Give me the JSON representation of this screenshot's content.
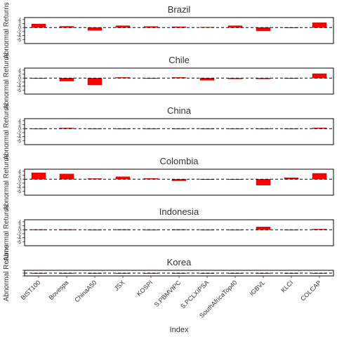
{
  "chart_data": {
    "type": "bar",
    "xlabel": "Index",
    "ylabel": "Abnormal Returns",
    "ylim": [
      -8,
      5
    ],
    "yticks": [
      -6,
      -4,
      -2,
      0,
      2,
      4
    ],
    "reference_line": {
      "y": 0,
      "style": "dashed"
    },
    "colors": {
      "bar": "#ff0000",
      "bar_outline": "#8b0000",
      "frame": "#000000",
      "reference_line": "#000000"
    },
    "categories": [
      "BIST100",
      "Bovespa",
      "ChinaA50",
      "JSX",
      "KOSPI",
      "S.PBMVIPC",
      "S.PCLXIPSA",
      "SouthAfricaTop40",
      "IGBVL",
      "KLCI",
      "COLCAP"
    ],
    "panels": [
      {
        "title": "Brazil",
        "values": [
          1.8,
          0.6,
          -1.4,
          0.9,
          0.5,
          0.4,
          0.2,
          0.9,
          -1.7,
          0,
          2.4
        ]
      },
      {
        "title": "Chile",
        "values": [
          0,
          -1.5,
          -3.4,
          0.3,
          -0.2,
          0.3,
          -1.1,
          -0.4,
          -0.4,
          0,
          2.2
        ]
      },
      {
        "title": "China",
        "values": [
          0,
          0.3,
          0,
          0,
          0,
          0,
          0,
          0,
          0,
          0,
          0.4
        ]
      },
      {
        "title": "Colombia",
        "values": [
          3.2,
          2.6,
          0.3,
          1.2,
          0.4,
          -0.8,
          0,
          0,
          -3.0,
          0.7,
          2.9
        ]
      },
      {
        "title": "Indonesia",
        "values": [
          0.1,
          0.1,
          0,
          0.1,
          0,
          0.1,
          0,
          0,
          1.4,
          0,
          0.3
        ]
      },
      {
        "title": "Korea",
        "values": [
          0,
          0,
          0,
          0,
          0,
          0,
          0,
          0,
          0,
          0,
          0
        ]
      }
    ]
  }
}
